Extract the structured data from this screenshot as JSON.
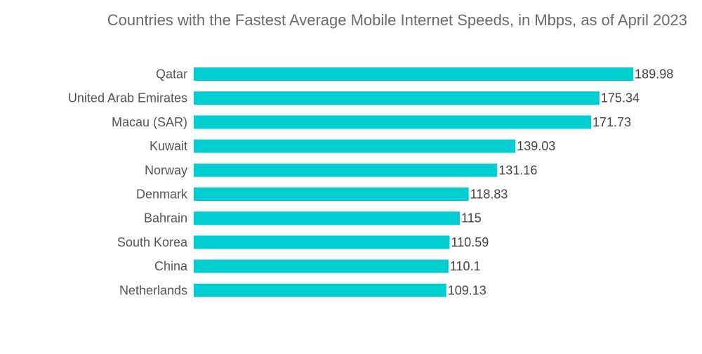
{
  "chart_data": {
    "type": "bar",
    "orientation": "horizontal",
    "title": "Countries with the Fastest Average Mobile Internet Speeds, in Mbps, as of April 2023",
    "categories": [
      "Qatar",
      "United Arab Emirates",
      "Macau (SAR)",
      "Kuwait",
      "Norway",
      "Denmark",
      "Bahrain",
      "South Korea",
      "China",
      "Netherlands"
    ],
    "values": [
      189.98,
      175.34,
      171.73,
      139.03,
      131.16,
      118.83,
      115,
      110.59,
      110.1,
      109.13
    ],
    "value_labels": [
      "189.98",
      "175.34",
      "171.73",
      "139.03",
      "131.16",
      "118.83",
      "115",
      "110.59",
      "110.1",
      "109.13"
    ],
    "xlabel": "",
    "ylabel": "",
    "grid": false,
    "legend": "none",
    "bar_color": "#00CED1"
  }
}
